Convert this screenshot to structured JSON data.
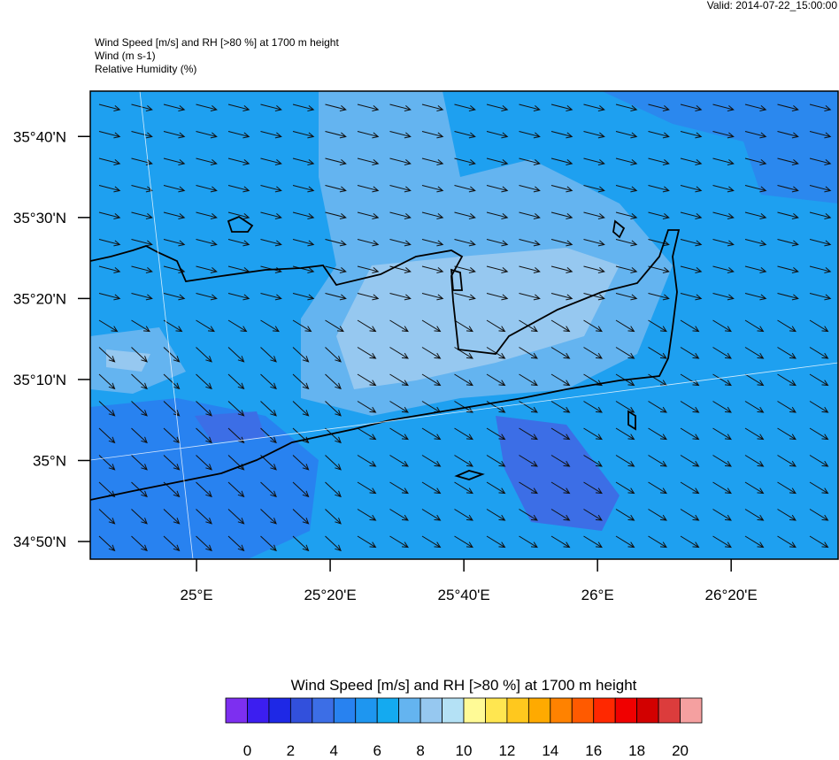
{
  "header": {
    "valid": "Valid: 2014-07-22_15:00:00",
    "lines": [
      "Wind Speed [m/s] and RH [>80 %] at 1700 m height",
      "Wind   (m s-1)",
      "Relative Humidity   (%)"
    ]
  },
  "map": {
    "lonlim": [
      24.735,
      26.6
    ],
    "latlim": [
      34.797,
      35.76
    ],
    "lat_ticks": [
      {
        "value": 35.6667,
        "label": "35°40'N"
      },
      {
        "value": 35.5,
        "label": "35°30'N"
      },
      {
        "value": 35.3333,
        "label": "35°20'N"
      },
      {
        "value": 35.1667,
        "label": "35°10'N"
      },
      {
        "value": 35,
        "label": "35°N"
      },
      {
        "value": 34.8333,
        "label": "34°50'N"
      }
    ],
    "lon_ticks": [
      {
        "value": 25,
        "label": "25°E"
      },
      {
        "value": 25.3333,
        "label": "25°20'E"
      },
      {
        "value": 25.6667,
        "label": "25°40'E"
      },
      {
        "value": 26,
        "label": "26°E"
      },
      {
        "value": 26.3333,
        "label": "26°20'E"
      }
    ]
  },
  "colorbar": {
    "title": "Wind Speed [m/s] and RH [>80 %] at 1700 m height",
    "range": [
      -1,
      21
    ],
    "colors": [
      "#7d2ff0",
      "#3c1ef0",
      "#1e28e6",
      "#3250dc",
      "#3c6ee6",
      "#2882f0",
      "#1e96f0",
      "#14aaf0",
      "#64b4f0",
      "#96c8f0",
      "#b4e1f5",
      "#fffa96",
      "#ffe650",
      "#ffc81e",
      "#ffaa00",
      "#ff8200",
      "#ff5a00",
      "#ff2800",
      "#f00000",
      "#d20000",
      "#dc3c3c",
      "#f5a0a0"
    ],
    "ticks": [
      0,
      2,
      4,
      6,
      8,
      10,
      12,
      14,
      16,
      18,
      20
    ]
  }
}
